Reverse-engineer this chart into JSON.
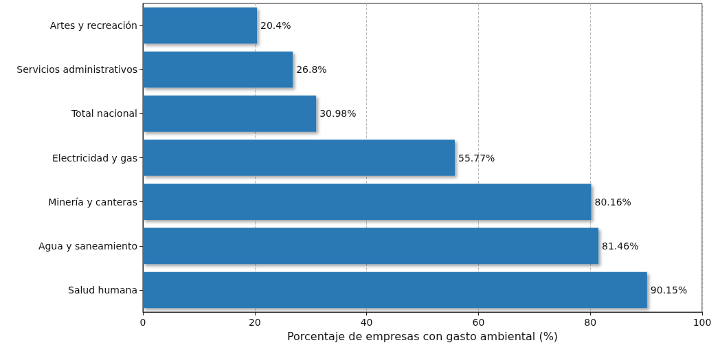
{
  "chart_data": {
    "type": "bar",
    "orientation": "horizontal",
    "xlabel": "Porcentaje de empresas con gasto ambiental (%)",
    "categories": [
      "Artes y recreación",
      "Servicios administrativos",
      "Total nacional",
      "Electricidad y gas",
      "Minería y canteras",
      "Agua y saneamiento",
      "Salud humana"
    ],
    "values": [
      20.4,
      26.8,
      30.98,
      55.77,
      80.16,
      81.46,
      90.15
    ],
    "value_labels": [
      "20.4%",
      "26.8%",
      "30.98%",
      "55.77%",
      "80.16%",
      "81.46%",
      "90.15%"
    ],
    "color": "#2a78b4",
    "xlim": [
      0,
      100
    ],
    "xticks": [
      0,
      20,
      40,
      60,
      80,
      100
    ],
    "grid": "x"
  }
}
